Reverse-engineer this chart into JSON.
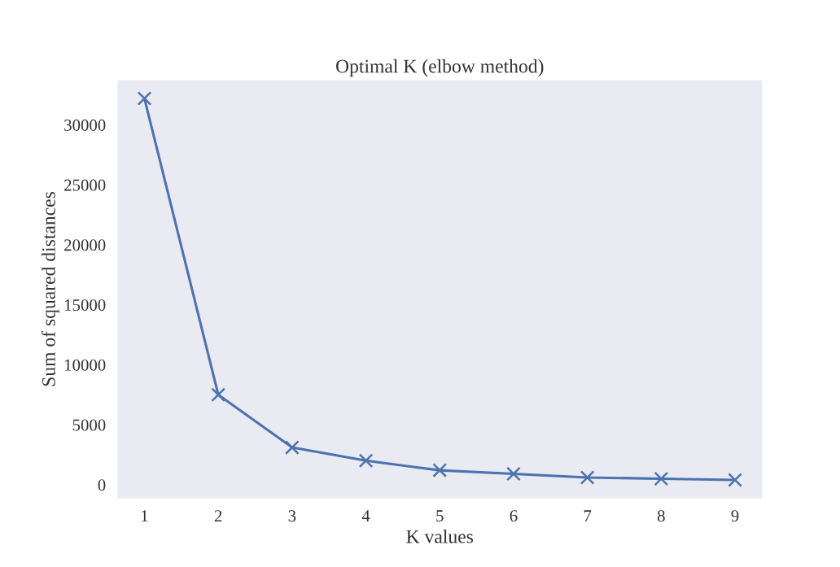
{
  "chart_data": {
    "type": "line",
    "title": "Optimal K (elbow method)",
    "xlabel": "K values",
    "ylabel": "Sum of squared distances",
    "x": [
      1,
      2,
      3,
      4,
      5,
      6,
      7,
      8,
      9
    ],
    "series": [
      {
        "color": "#4c72b0",
        "values": [
          32200,
          7500,
          3100,
          2000,
          1200,
          900,
          600,
          500,
          400
        ]
      }
    ],
    "marker": "cross",
    "line_style": "solid",
    "grid": false,
    "xlim": [
      0.625,
      9.375
    ],
    "xticks": [
      1,
      2,
      3,
      4,
      5,
      6,
      7,
      8,
      9
    ],
    "ylim": [
      -1190,
      33790
    ],
    "yticks": [
      0,
      5000,
      10000,
      15000,
      20000,
      25000,
      30000
    ]
  }
}
